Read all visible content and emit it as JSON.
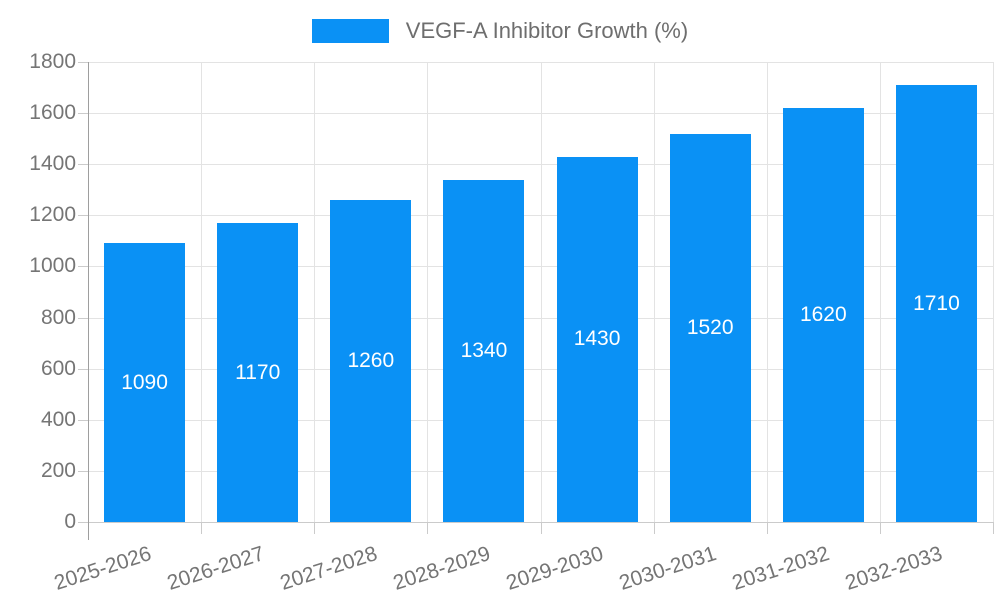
{
  "chart_data": {
    "type": "bar",
    "title": "VEGF-A Inhibitor Growth (%)",
    "categories": [
      "2025-2026",
      "2026-2027",
      "2027-2028",
      "2028-2029",
      "2029-2030",
      "2030-2031",
      "2031-2032",
      "2032-2033"
    ],
    "values": [
      1090,
      1170,
      1260,
      1340,
      1430,
      1520,
      1620,
      1710
    ],
    "y_ticks": [
      0,
      200,
      400,
      600,
      800,
      1000,
      1200,
      1400,
      1600,
      1800
    ],
    "ylim": [
      0,
      1800
    ],
    "xlabel": "",
    "ylabel": "",
    "grid": true,
    "legend_position": "top",
    "colors": {
      "bar": "#0A91F5",
      "value_label": "#ffffff",
      "axis_text": "#757575",
      "legend_text": "#6e6e6e",
      "grid_line": "#e3e3e3",
      "axis_line": "#9e9e9e",
      "tick": "#cbcbcb",
      "background": "#ffffff"
    }
  }
}
